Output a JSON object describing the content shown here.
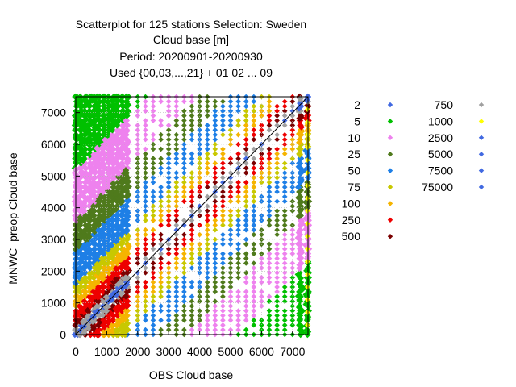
{
  "chart_data": {
    "type": "scatter",
    "title_lines": [
      "Scatterplot for  125 stations Selection: Sweden",
      "Cloud base [m]",
      "Period: 20200901-20200930",
      "Used {00,03,...,21} + 01 02 ... 09"
    ],
    "xlabel": "OBS Cloud base",
    "ylabel": "MNWC_preop Cloud base",
    "xlim": [
      0,
      7500
    ],
    "ylim": [
      0,
      7500
    ],
    "x_ticks": [
      "0",
      "1000",
      "2000",
      "3000",
      "4000",
      "5000",
      "6000",
      "7000"
    ],
    "x_tick_values": [
      0,
      1000,
      2000,
      3000,
      4000,
      5000,
      6000,
      7000
    ],
    "y_ticks": [
      "0",
      "1000",
      "2000",
      "3000",
      "4000",
      "5000",
      "6000",
      "7000"
    ],
    "y_tick_values": [
      0,
      1000,
      2000,
      3000,
      4000,
      5000,
      6000,
      7000
    ],
    "grid": true,
    "diagonal_line": true,
    "legend_placement": "right",
    "series": [
      {
        "name": "2",
        "color": "#4169e1"
      },
      {
        "name": "5",
        "color": "#00c000"
      },
      {
        "name": "10",
        "color": "#ee82ee"
      },
      {
        "name": "25",
        "color": "#4f7a1c"
      },
      {
        "name": "50",
        "color": "#1e7fe6"
      },
      {
        "name": "75",
        "color": "#c8c800"
      },
      {
        "name": "100",
        "color": "#f5b400"
      },
      {
        "name": "250",
        "color": "#ee0000"
      },
      {
        "name": "500",
        "color": "#7a0000"
      },
      {
        "name": "750",
        "color": "#a0a0a0"
      },
      {
        "name": "1000",
        "color": "#ffff00"
      },
      {
        "name": "2500",
        "color": "#4169e1"
      },
      {
        "name": "5000",
        "color": "#4169e1"
      },
      {
        "name": "7500",
        "color": "#4169e1"
      },
      {
        "name": "75000",
        "color": "#4169e1"
      }
    ],
    "obs_columns": [
      0,
      150,
      300,
      450,
      600,
      750,
      900,
      1050,
      1200,
      1350,
      1500,
      1650,
      2000,
      2250,
      2500,
      2750,
      3000,
      3250,
      3500,
      3750,
      4000,
      4250,
      4500,
      4750,
      5000,
      5250,
      5500,
      5750,
      6000,
      6250,
      6500,
      6750,
      7000,
      7250,
      7500
    ],
    "model_levels": [
      0,
      150,
      300,
      450,
      600,
      750,
      900,
      1050,
      1200,
      1350,
      1500,
      1650,
      1800,
      1950,
      2100,
      2250,
      2400,
      2550,
      2700,
      2850,
      3000,
      3150,
      3300,
      3450,
      3600,
      3750,
      3900,
      4050,
      4200,
      4350,
      4500,
      4650,
      4800,
      4950,
      5100,
      5250,
      5400,
      5550,
      5700,
      5850,
      6000,
      6150,
      6300,
      6450,
      6600,
      6750,
      6900,
      7050,
      7200,
      7350,
      7500
    ]
  }
}
